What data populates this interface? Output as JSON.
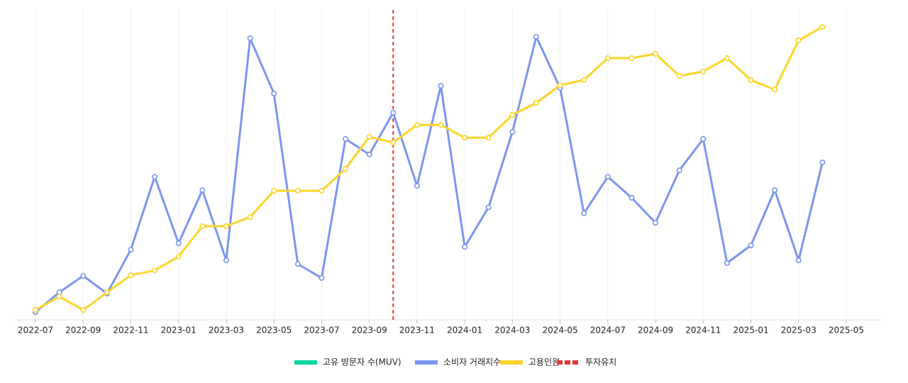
{
  "chart_data": {
    "type": "line",
    "x": [
      "2022-07",
      "2022-08",
      "2022-09",
      "2022-10",
      "2022-11",
      "2022-12",
      "2023-01",
      "2023-02",
      "2023-03",
      "2023-04",
      "2023-05",
      "2023-06",
      "2023-07",
      "2023-08",
      "2023-09",
      "2023-10",
      "2023-11",
      "2023-12",
      "2024-01",
      "2024-02",
      "2024-03",
      "2024-04",
      "2024-05",
      "2024-06",
      "2024-07",
      "2024-08",
      "2024-09",
      "2024-10",
      "2024-11",
      "2024-12",
      "2025-01",
      "2025-02",
      "2025-03",
      "2025-04"
    ],
    "xlim": [
      "2022-07",
      "2025-05"
    ],
    "xticks": [
      "2022-07",
      "2022-09",
      "2022-11",
      "2023-01",
      "2023-03",
      "2023-05",
      "2023-07",
      "2023-09",
      "2023-11",
      "2024-01",
      "2024-03",
      "2024-05",
      "2024-07",
      "2024-09",
      "2024-11",
      "2025-01",
      "2025-03",
      "2025-05"
    ],
    "ylim": [
      0,
      100
    ],
    "grid": true,
    "series": [
      {
        "name": "고유 방문자 수(MUV)",
        "color": "#00d49f",
        "values": [
          null,
          null,
          null,
          null,
          null,
          null,
          null,
          null,
          null,
          null,
          null,
          null,
          null,
          null,
          null,
          null,
          null,
          null,
          null,
          null,
          null,
          null,
          null,
          null,
          null,
          null,
          null,
          null,
          null,
          null,
          null,
          null,
          null,
          null
        ]
      },
      {
        "name": "소비자 거래지수",
        "color": "#7b96f0",
        "values": [
          2.3,
          8.8,
          14.2,
          8.4,
          22.8,
          46.7,
          24.9,
          42.3,
          19.3,
          92.1,
          74.0,
          18.1,
          13.5,
          59.1,
          54.0,
          67.7,
          43.7,
          76.5,
          23.7,
          36.7,
          61.4,
          92.6,
          75.8,
          34.7,
          46.7,
          39.8,
          31.6,
          48.8,
          59.1,
          18.4,
          24.2,
          42.3,
          19.3,
          51.4
        ]
      },
      {
        "name": "고용인원",
        "color": "#fcd42a",
        "values": [
          3.0,
          7.4,
          3.0,
          8.8,
          14.4,
          16.0,
          20.5,
          30.5,
          30.5,
          33.5,
          42.1,
          42.1,
          42.1,
          49.3,
          59.8,
          57.9,
          63.7,
          63.7,
          59.5,
          59.5,
          67.0,
          70.9,
          76.7,
          78.4,
          85.6,
          85.6,
          87.0,
          79.8,
          81.2,
          85.6,
          78.4,
          75.3,
          91.4,
          95.8
        ]
      }
    ],
    "event": {
      "name": "투자유치",
      "x": "2023-10",
      "color": "#e53935"
    }
  }
}
